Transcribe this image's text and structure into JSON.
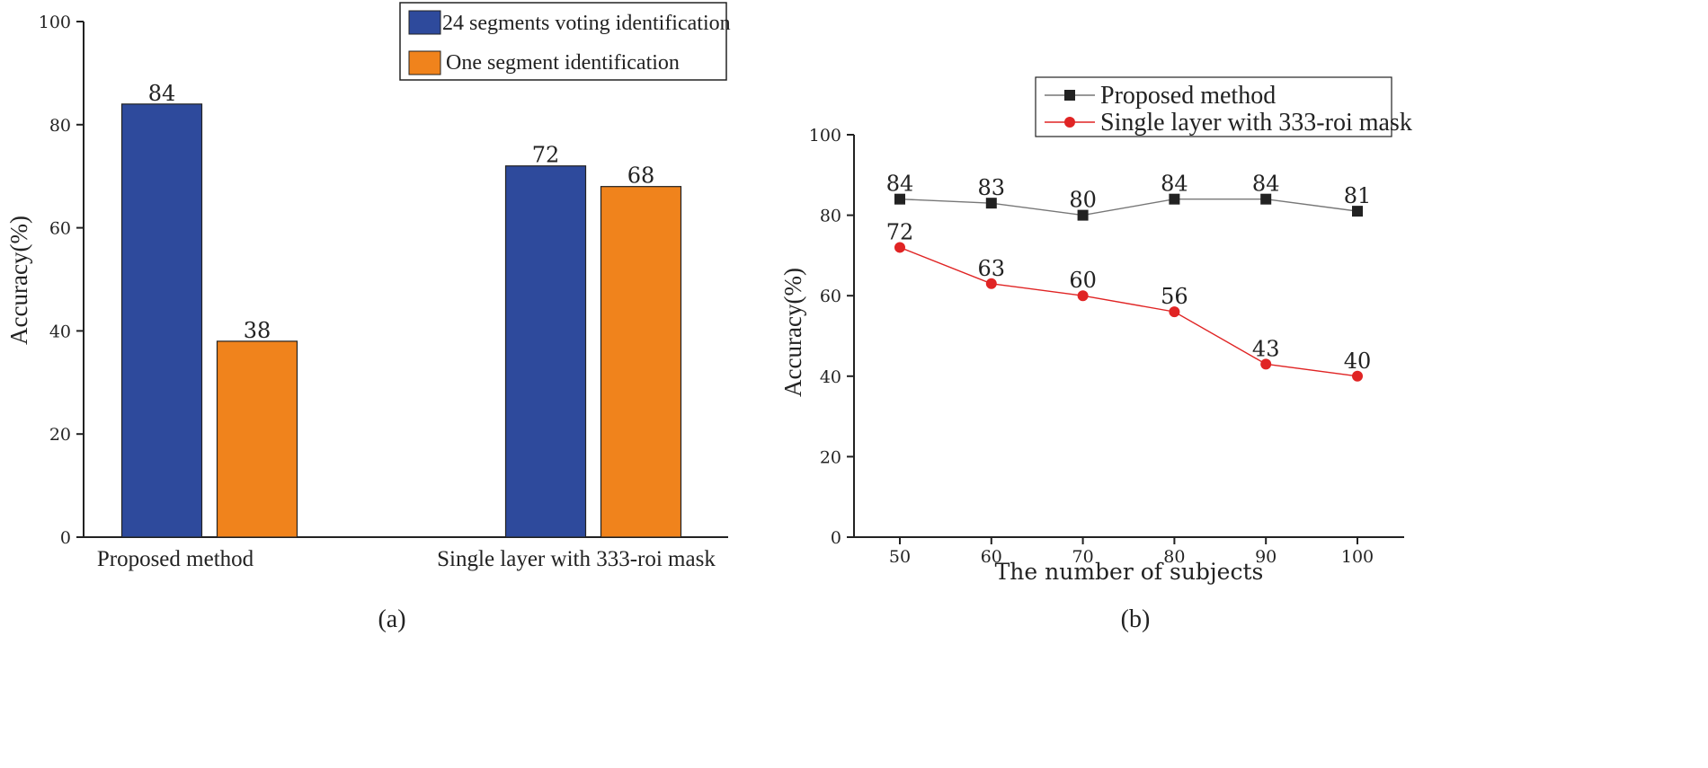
{
  "chart_data": [
    {
      "type": "bar",
      "panel_label": "(a)",
      "categories": [
        "Proposed method",
        "Single layer with 333-roi mask"
      ],
      "series": [
        {
          "name": "24 segments voting identification",
          "color": "#2e4a9c",
          "values": [
            84,
            72
          ]
        },
        {
          "name": "One segment identification",
          "color": "#f0831c",
          "values": [
            38,
            68
          ]
        }
      ],
      "ylabel": "Accuracy(%)",
      "xlabel": "",
      "ylim": [
        0,
        100
      ],
      "yticks": [
        0,
        20,
        40,
        60,
        80,
        100
      ],
      "legend": "top-right"
    },
    {
      "type": "line",
      "panel_label": "(b)",
      "x": [
        50,
        60,
        70,
        80,
        90,
        100
      ],
      "series": [
        {
          "name": "Proposed method",
          "color": "#222222",
          "marker": "square",
          "values": [
            84,
            83,
            80,
            84,
            84,
            81
          ]
        },
        {
          "name": "Single layer with 333-roi mask",
          "color": "#e02424",
          "marker": "circle",
          "values": [
            72,
            63,
            60,
            56,
            43,
            40
          ]
        }
      ],
      "xlabel": "The number of subjects",
      "ylabel": "Accuracy(%)",
      "ylim": [
        0,
        100
      ],
      "yticks": [
        0,
        20,
        40,
        60,
        80,
        100
      ],
      "legend": "top-right"
    }
  ]
}
